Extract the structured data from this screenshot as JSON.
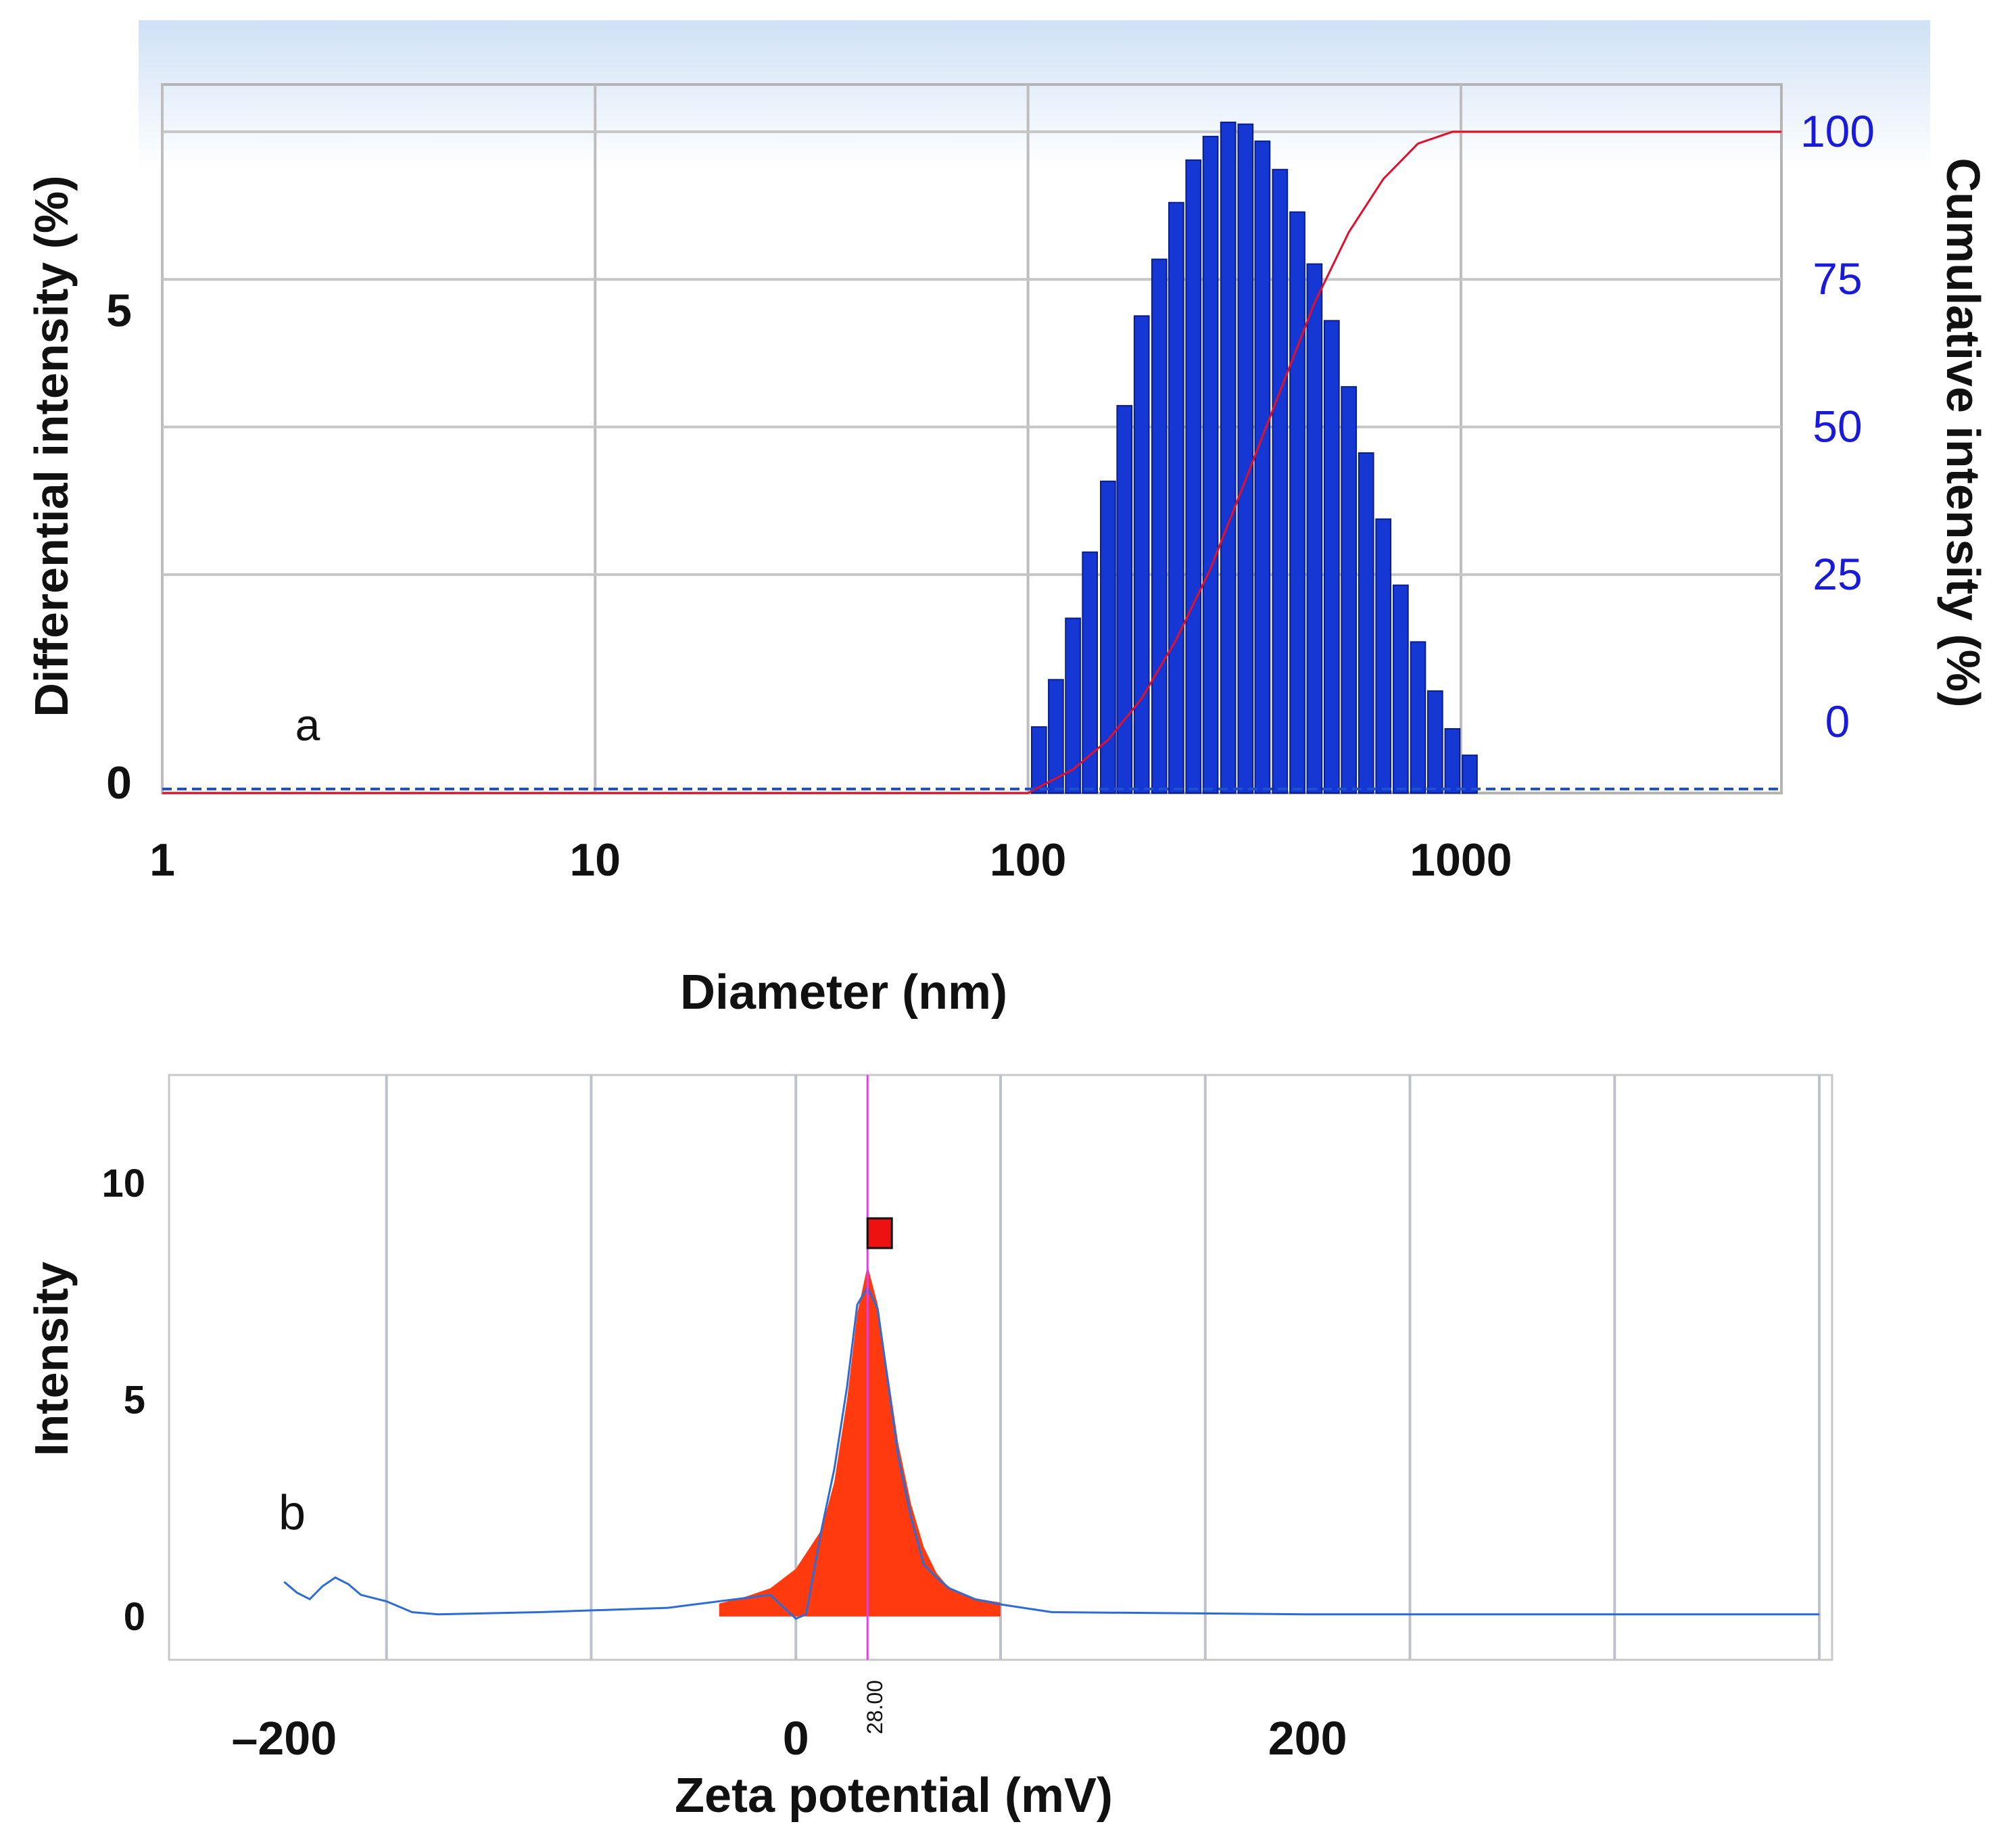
{
  "chart_data": [
    {
      "panel_label": "a",
      "type": "bar",
      "xlabel": "Diameter (nm)",
      "ylabel": "Differential intensity (%)",
      "y2label": "Cumulative intensity (%)",
      "xscale": "log",
      "xlim": [
        1,
        5500
      ],
      "ylim": [
        -0.1,
        7.4
      ],
      "y2lim": [
        -12,
        108
      ],
      "x_ticks": [
        1,
        10,
        100,
        1000
      ],
      "x_tick_labels": [
        "1",
        "10",
        "100",
        "1000"
      ],
      "y_ticks": [
        0,
        5
      ],
      "y_tick_labels": [
        "0",
        "5"
      ],
      "y2_ticks": [
        0,
        25,
        50,
        75,
        100
      ],
      "y2_tick_labels": [
        "0",
        "25",
        "50",
        "75",
        "100"
      ],
      "grid": true,
      "series": [
        {
          "kind": "bar",
          "axis": "left",
          "color": "#1538d4",
          "x": [
            106,
            116,
            127,
            139,
            153,
            167,
            183,
            201,
            220,
            241,
            264,
            290,
            318,
            348,
            382,
            419,
            459,
            503,
            551,
            604,
            662,
            726,
            796,
            872,
            956,
            1048
          ],
          "values": [
            0.6,
            1.1,
            1.75,
            2.45,
            3.2,
            4.0,
            4.95,
            5.55,
            6.15,
            6.6,
            6.85,
            7.0,
            6.98,
            6.8,
            6.5,
            6.05,
            5.5,
            4.9,
            4.2,
            3.5,
            2.8,
            2.1,
            1.5,
            0.98,
            0.58,
            0.3
          ]
        },
        {
          "kind": "line",
          "axis": "right",
          "color": "#e0102a",
          "x": [
            1,
            100,
            106,
            127,
            153,
            183,
            220,
            264,
            318,
            382,
            459,
            551,
            662,
            796,
            956,
            1100,
            5500
          ],
          "values": [
            -12,
            -12,
            -11,
            -8,
            -3,
            4,
            14,
            26,
            41,
            56,
            71,
            83,
            92,
            98,
            100,
            100,
            100
          ]
        }
      ]
    },
    {
      "panel_label": "b",
      "type": "line",
      "xlabel": "Zeta potential (mV)",
      "ylabel": "Intensity",
      "xlim": [
        -245,
        405
      ],
      "ylim": [
        -1,
        12.5
      ],
      "x_ticks": [
        -200,
        0,
        200
      ],
      "x_tick_labels": [
        "–200",
        "0",
        "200"
      ],
      "y_ticks": [
        0,
        5,
        10
      ],
      "y_tick_labels": [
        "0",
        "5",
        "10"
      ],
      "grid": true,
      "peak_marker": {
        "x": 28.0,
        "label": "28.00",
        "color": "#e040e0"
      },
      "series": [
        {
          "kind": "area",
          "color": "#ff3a0e",
          "x": [
            -30,
            -20,
            -10,
            0,
            10,
            15,
            20,
            24,
            28,
            32,
            36,
            40,
            45,
            50,
            55,
            60,
            70,
            80
          ],
          "values": [
            0.3,
            0.45,
            0.65,
            1.1,
            2.0,
            3.1,
            5.0,
            7.0,
            8.1,
            7.2,
            5.6,
            4.0,
            2.6,
            1.6,
            1.0,
            0.65,
            0.42,
            0.32
          ]
        },
        {
          "kind": "line",
          "color": "#2d6cd4",
          "x": [
            -200,
            -195,
            -190,
            -185,
            -180,
            -175,
            -170,
            -160,
            -150,
            -140,
            -100,
            -50,
            -10,
            0,
            4,
            10,
            15,
            20,
            24,
            28,
            32,
            36,
            40,
            45,
            50,
            55,
            60,
            70,
            80,
            100,
            200,
            300,
            360,
            400
          ],
          "values": [
            0.8,
            0.55,
            0.4,
            0.7,
            0.9,
            0.75,
            0.5,
            0.35,
            0.1,
            0.05,
            0.1,
            0.2,
            0.5,
            -0.05,
            0.05,
            2.0,
            3.4,
            5.3,
            7.2,
            7.6,
            7.1,
            5.4,
            3.7,
            2.3,
            1.2,
            0.9,
            0.65,
            0.4,
            0.28,
            0.1,
            0.05,
            0.05,
            0.05,
            0.05
          ]
        }
      ]
    }
  ]
}
